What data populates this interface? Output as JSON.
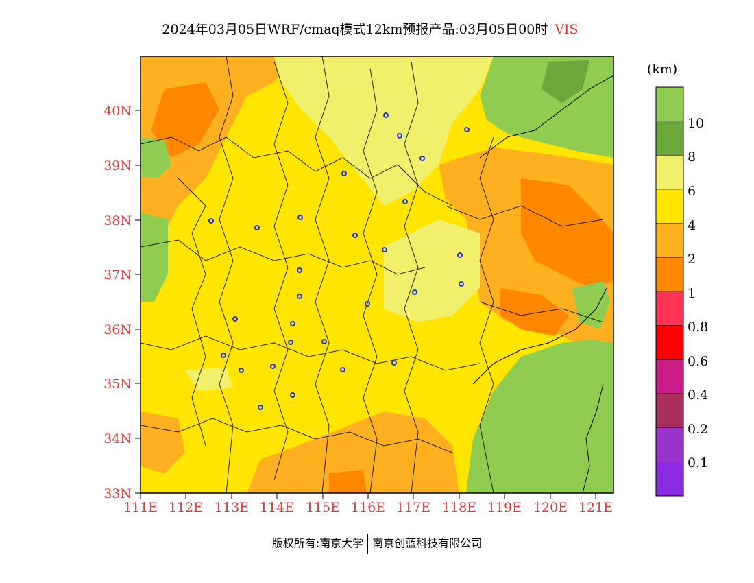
{
  "title": "2024年03月05日WRF/cmaq模式12km预报产品:03月05日00时",
  "variable": "VIS",
  "unit_label": "(km)",
  "lon_labels": [
    "111E",
    "112E",
    "113E",
    "114E",
    "115E",
    "116E",
    "117E",
    "118E",
    "119E",
    "120E",
    "121E"
  ],
  "lat_labels": [
    "40N",
    "39N",
    "38N",
    "37N",
    "36N",
    "35N",
    "34N",
    "33N"
  ],
  "colorbar": {
    "labels": [
      "10",
      "8",
      "6",
      "4",
      "2",
      "1",
      "0.8",
      "0.6",
      "0.4",
      "0.2",
      "0.1"
    ],
    "colors": [
      "#8fcc4f",
      "#6aa83c",
      "#f0f06a",
      "#ffe500",
      "#ffb020",
      "#ff8800",
      "#ff3355",
      "#ff0000",
      "#cc1a88",
      "#aa2e5e",
      "#9933cc",
      "#8a2be2"
    ]
  },
  "colors": {
    "green_sea": "#8fcc4f",
    "dark_green": "#6aa83c",
    "light_yellow": "#f0f06a",
    "yellow": "#ffe500",
    "light_orange": "#ffb020",
    "orange": "#ff8800",
    "station_marker": "#2233dd"
  },
  "footer": {
    "left": "版权所有:南京大学",
    "right": "南京创蓝科技有限公司"
  }
}
